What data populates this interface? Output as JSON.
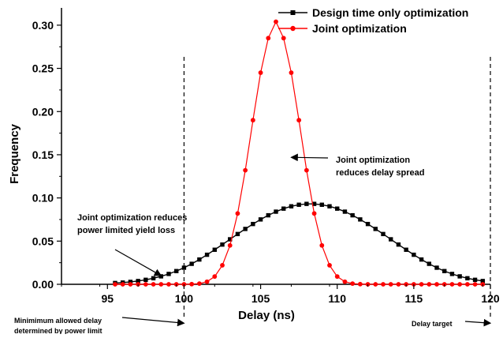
{
  "chart_data": {
    "type": "line",
    "xlabel": "Delay (ns)",
    "ylabel": "Frequency",
    "xlim": [
      92,
      120
    ],
    "ylim": [
      0,
      0.32
    ],
    "xticks": [
      95,
      100,
      105,
      110,
      115,
      120
    ],
    "xtick_labels": [
      "95",
      "100",
      "105",
      "110",
      "115",
      "120"
    ],
    "yticks": [
      0.0,
      0.05,
      0.1,
      0.15,
      0.2,
      0.25,
      0.3
    ],
    "ytick_labels": [
      "0.00",
      "0.05",
      "0.10",
      "0.15",
      "0.20",
      "0.25",
      "0.30"
    ],
    "grid": false,
    "legend_position": "top-right",
    "series": [
      {
        "name": "Design time only optimization",
        "color": "#000000",
        "marker": "square",
        "x": [
          95.5,
          96.0,
          96.5,
          97.0,
          97.5,
          98.0,
          98.5,
          99.0,
          99.5,
          100.0,
          100.5,
          101.0,
          101.5,
          102.0,
          102.5,
          103.0,
          103.5,
          104.0,
          104.5,
          105.0,
          105.5,
          106.0,
          106.5,
          107.0,
          107.5,
          108.0,
          108.5,
          109.0,
          109.5,
          110.0,
          110.5,
          111.0,
          111.5,
          112.0,
          112.5,
          113.0,
          113.5,
          114.0,
          114.5,
          115.0,
          115.5,
          116.0,
          116.5,
          117.0,
          117.5,
          118.0,
          118.5,
          119.0,
          119.5
        ],
        "y": [
          0.0015,
          0.002,
          0.0028,
          0.0038,
          0.0052,
          0.007,
          0.0092,
          0.012,
          0.0153,
          0.0192,
          0.0237,
          0.0287,
          0.0342,
          0.04,
          0.046,
          0.0521,
          0.0582,
          0.0641,
          0.0698,
          0.0751,
          0.0799,
          0.0841,
          0.0876,
          0.0903,
          0.0921,
          0.0931,
          0.0931,
          0.0921,
          0.0903,
          0.0876,
          0.0841,
          0.0799,
          0.0751,
          0.0698,
          0.0641,
          0.0582,
          0.0521,
          0.046,
          0.04,
          0.0342,
          0.0287,
          0.0237,
          0.0192,
          0.0153,
          0.012,
          0.0092,
          0.007,
          0.0052,
          0.0038
        ]
      },
      {
        "name": "Joint optimization",
        "color": "#ff0000",
        "marker": "circle",
        "x": [
          95.5,
          96.0,
          96.5,
          97.0,
          97.5,
          98.0,
          98.5,
          99.0,
          99.5,
          100.0,
          100.5,
          101.0,
          101.5,
          102.0,
          102.5,
          103.0,
          103.5,
          104.0,
          104.5,
          105.0,
          105.5,
          106.0,
          106.5,
          107.0,
          107.5,
          108.0,
          108.5,
          109.0,
          109.5,
          110.0,
          110.5,
          111.0,
          111.5,
          112.0,
          112.5,
          113.0,
          113.5,
          114.0,
          114.5,
          115.0,
          115.5,
          116.0,
          116.5,
          117.0,
          117.5,
          118.0,
          118.5,
          119.0,
          119.5
        ],
        "y": [
          0,
          0,
          0,
          0,
          0,
          0,
          0,
          0,
          0,
          0,
          0.0002,
          0.0008,
          0.003,
          0.009,
          0.022,
          0.045,
          0.082,
          0.132,
          0.19,
          0.245,
          0.285,
          0.304,
          0.285,
          0.245,
          0.19,
          0.132,
          0.082,
          0.045,
          0.022,
          0.009,
          0.003,
          0.0008,
          0.0002,
          0,
          0,
          0,
          0,
          0,
          0,
          0,
          0,
          0,
          0,
          0,
          0,
          0,
          0,
          0,
          0
        ]
      }
    ],
    "reference_lines": [
      {
        "x": 100,
        "style": "dashed"
      },
      {
        "x": 120,
        "style": "dashed"
      }
    ],
    "annotations": [
      {
        "id": "delay_spread",
        "lines": [
          "Joint optimization",
          "reduces delay spread"
        ],
        "arrow_to": [
          107.0,
          0.147
        ]
      },
      {
        "id": "yield_loss",
        "lines": [
          "Joint optimization reduces",
          "power limited yield loss"
        ],
        "arrow_to": [
          98.5,
          0.01
        ]
      },
      {
        "id": "min_delay",
        "lines": [
          "Minimimum allowed delay",
          "determined by power limit"
        ],
        "arrow_to": [
          100,
          -0.045
        ]
      },
      {
        "id": "target",
        "lines": [
          "Delay target"
        ],
        "arrow_to": [
          120,
          -0.045
        ]
      }
    ]
  }
}
